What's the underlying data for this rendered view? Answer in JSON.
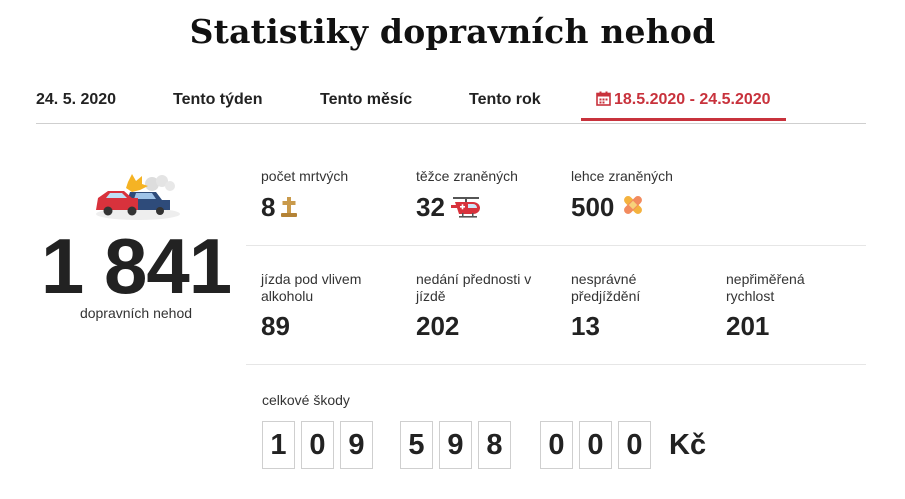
{
  "page": {
    "title": "Statistiky dopravních nehod"
  },
  "tabs": [
    {
      "label": "24. 5. 2020"
    },
    {
      "label": "Tento týden"
    },
    {
      "label": "Tento měsíc"
    },
    {
      "label": "Tento rok"
    },
    {
      "label": "18.5.2020 - 24.5.2020",
      "icon": "calendar-icon",
      "active": true
    }
  ],
  "total": {
    "value": "1 841",
    "label": "dopravních nehod",
    "icon": "car-crash-icon"
  },
  "stats": [
    {
      "label": "počet mrtvých",
      "value": "8",
      "icon": "grave-cross-icon"
    },
    {
      "label": "těžce zraněných",
      "value": "32",
      "icon": "helicopter-icon"
    },
    {
      "label": "lehce zraněných",
      "value": "500",
      "icon": "bandage-icon"
    },
    {
      "label": "jízda pod vlivem alkoholu",
      "value": "89"
    },
    {
      "label": "nedání přednosti v jízdě",
      "value": "202"
    },
    {
      "label": "nesprávné předjíždění",
      "value": "13"
    },
    {
      "label": "nepřiměřená rychlost",
      "value": "201"
    }
  ],
  "damage": {
    "label": "celkové škody",
    "digits": [
      "1",
      "0",
      "9",
      "5",
      "9",
      "8",
      "0",
      "0",
      "0"
    ],
    "currency": "Kč"
  },
  "colors": {
    "accent": "#c8323c",
    "text": "#222222",
    "divider": "#e6e6e6"
  }
}
